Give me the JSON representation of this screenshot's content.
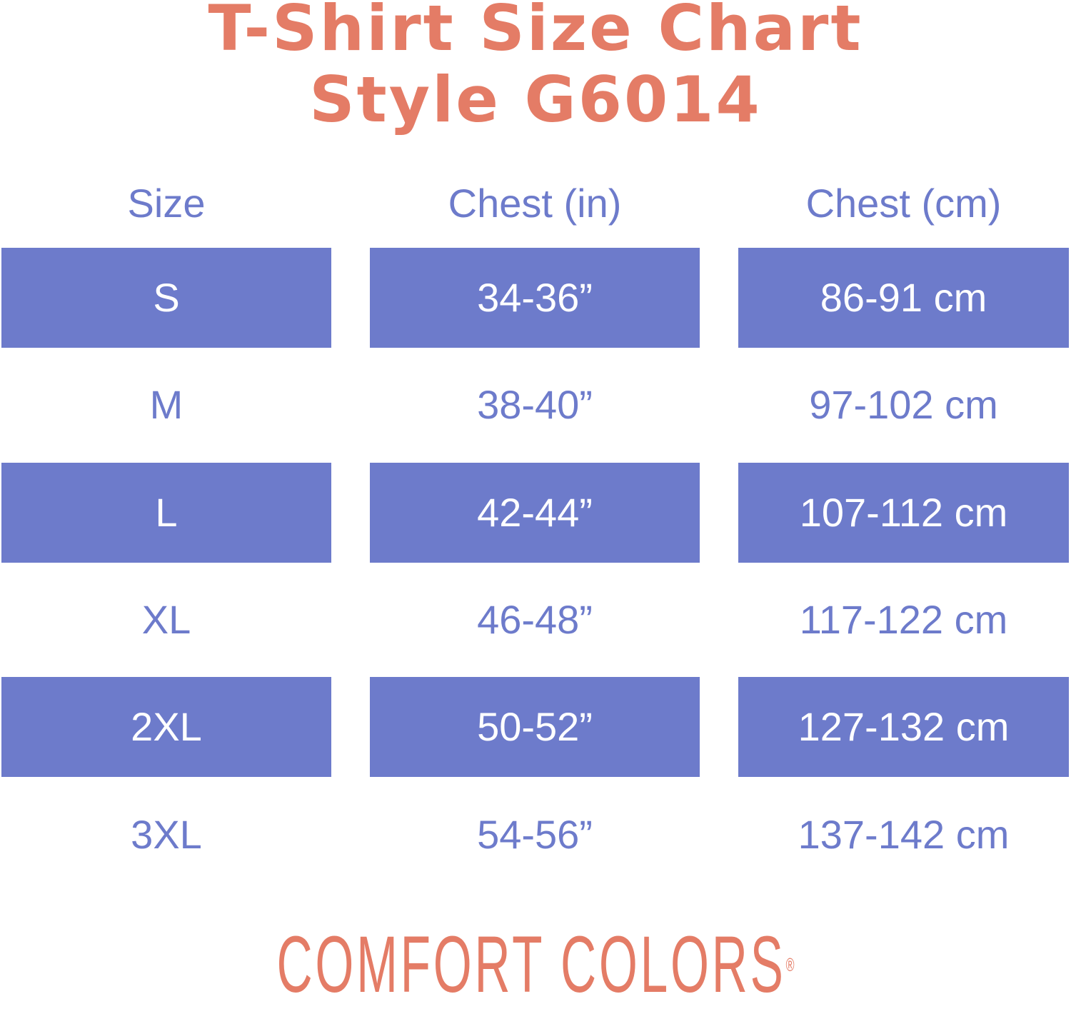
{
  "title": {
    "line1": "T-Shirt Size Chart",
    "line2": "Style G6014"
  },
  "colors": {
    "title": "#e47c66",
    "accent": "#6d7bcb",
    "text_on_accent": "#ffffff"
  },
  "table": {
    "headers": [
      "Size",
      "Chest (in)",
      "Chest (cm)"
    ],
    "rows": [
      [
        "S",
        "34-36”",
        "86-91 cm"
      ],
      [
        "M",
        "38-40”",
        "97-102 cm"
      ],
      [
        "L",
        "42-44”",
        "107-112 cm"
      ],
      [
        "XL",
        "46-48”",
        "117-122 cm"
      ],
      [
        "2XL",
        "50-52”",
        "127-132 cm"
      ],
      [
        "3XL",
        "54-56”",
        "137-142 cm"
      ]
    ]
  },
  "logo": {
    "text": "COMFORT COLORS",
    "mark": "®"
  }
}
